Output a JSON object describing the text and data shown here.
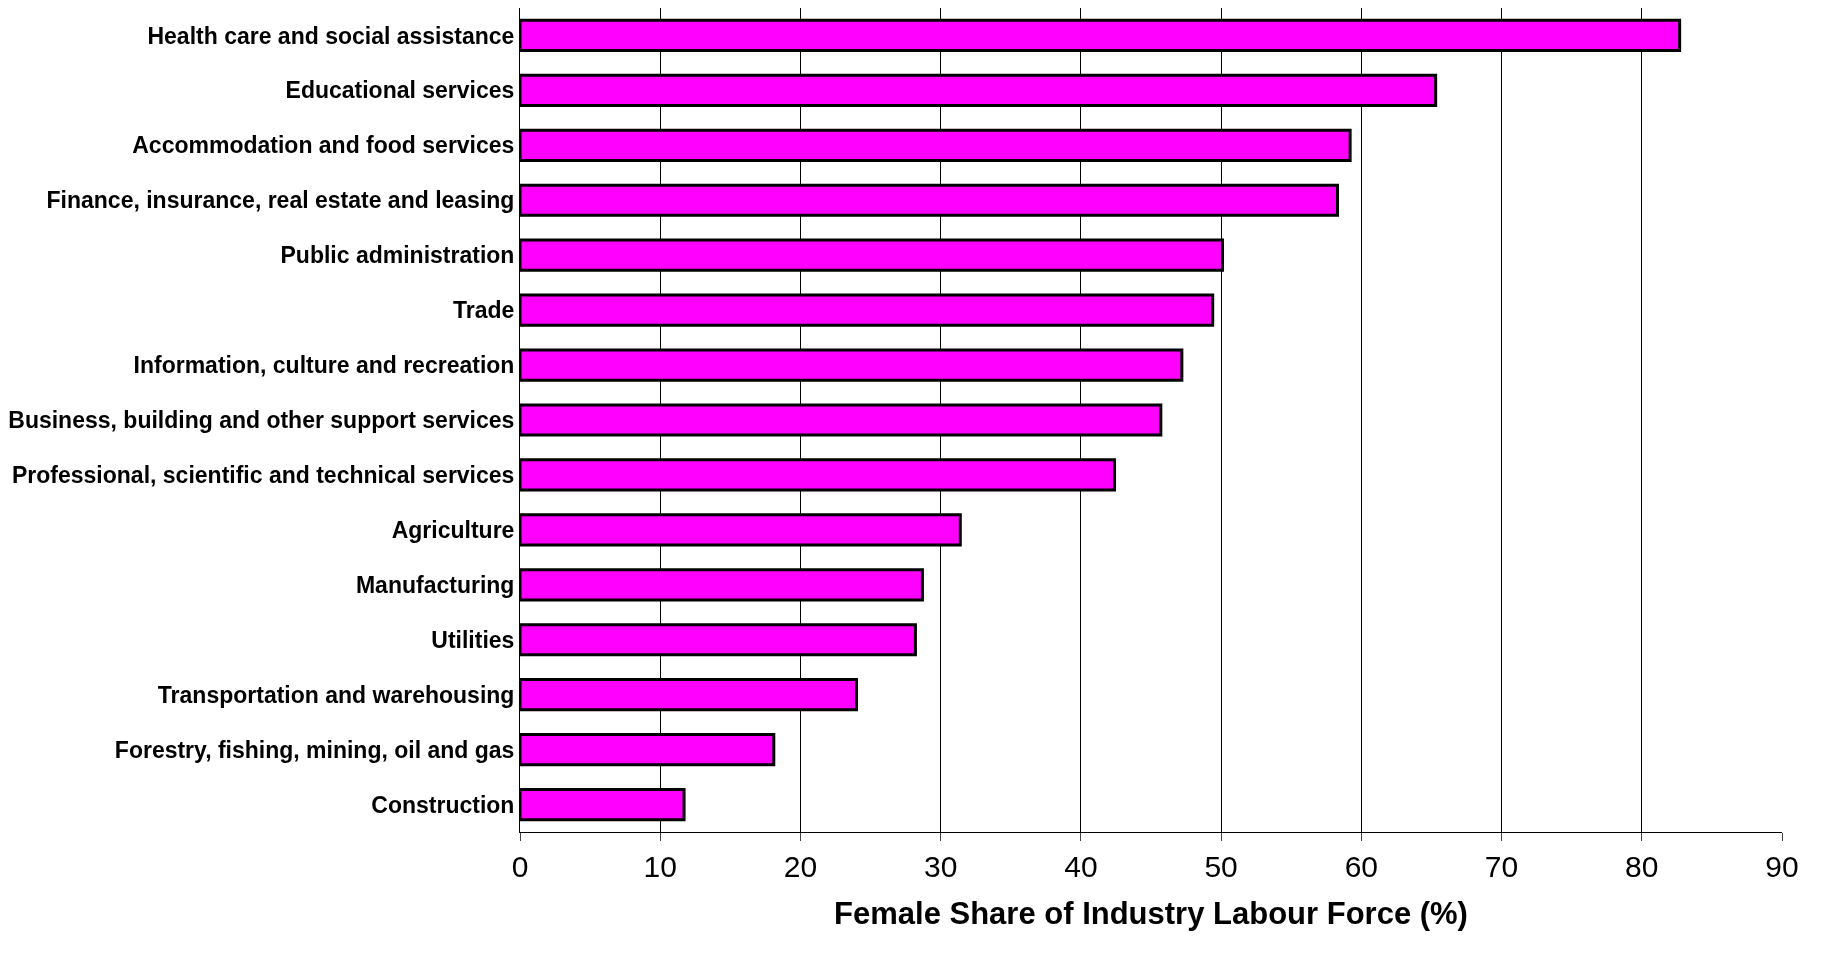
{
  "chart_data": {
    "type": "bar",
    "orientation": "horizontal",
    "xlabel": "Female Share of Industry Labour Force (%)",
    "categories": [
      "Health care and social assistance",
      "Educational services",
      "Accommodation and food services",
      "Finance, insurance, real estate and leasing",
      "Public administration",
      "Trade",
      "Information, culture and recreation",
      "Business, building and other support services",
      "Professional, scientific and technical services",
      "Agriculture",
      "Manufacturing",
      "Utilities",
      "Transportation and warehousing",
      "Forestry, fishing, mining, oil and gas",
      "Construction"
    ],
    "values": [
      82.7,
      65.3,
      59.2,
      58.3,
      50.1,
      49.4,
      47.2,
      45.7,
      42.4,
      31.4,
      28.7,
      28.2,
      24.0,
      18.1,
      11.7
    ],
    "color": "#ff00ff",
    "xlim": [
      0,
      90
    ],
    "xticks": [
      0,
      10,
      20,
      30,
      40,
      50,
      60,
      70,
      80,
      90
    ],
    "grid": "x",
    "legend": false
  }
}
